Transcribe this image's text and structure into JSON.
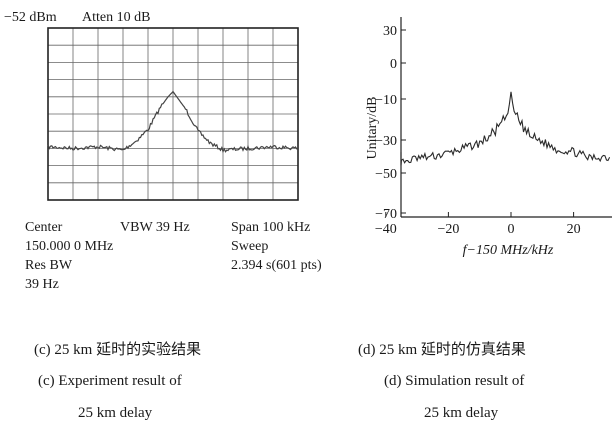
{
  "chart_data": [
    {
      "type": "line",
      "panel": "c",
      "header": {
        "ref_level": "−52 dBm",
        "atten": "Atten 10 dB"
      },
      "footer": {
        "center_label": "Center",
        "center_value": "150.000 0 MHz",
        "vbw": "VBW 39 Hz",
        "res_bw_label": "Res BW",
        "res_bw_value": "39 Hz",
        "span": "Span 100 kHz",
        "sweep_label": "Sweep",
        "sweep_value": "2.394 s(601 pts)"
      },
      "grid": true,
      "grid_divisions": {
        "x": 10,
        "y": 10
      },
      "x": [
        -50,
        -40,
        -30,
        -20,
        -15,
        -10,
        -5,
        -2,
        0,
        2,
        5,
        10,
        15,
        20,
        30,
        40,
        50
      ],
      "y": [
        6.9,
        7.0,
        6.9,
        7.1,
        6.6,
        5.9,
        4.6,
        4.0,
        3.7,
        4.1,
        4.7,
        6.0,
        6.7,
        7.1,
        7.0,
        6.9,
        7.0
      ],
      "caption_zh": "(c) 25 km 延时的实验结果",
      "caption_en_1": "(c) Experiment result of",
      "caption_en_2": "25 km delay"
    },
    {
      "type": "line",
      "panel": "d",
      "ylabel": "Unitary/dB",
      "xlabel": "f−150 MHz/kHz",
      "ylim": [
        -70,
        30
      ],
      "xlim": [
        -50,
        50
      ],
      "yticks": [
        "30",
        "0",
        "−10",
        "−30",
        "−50",
        "−70"
      ],
      "xticks": [
        "−40",
        "−20",
        "0",
        "20",
        "40"
      ],
      "x": [
        -50,
        -45,
        -40,
        -35,
        -30,
        -25,
        -20,
        -15,
        -10,
        -6,
        -3,
        -1,
        0,
        1,
        3,
        6,
        10,
        15,
        20,
        25,
        30,
        35,
        40,
        45,
        50
      ],
      "y": [
        -40,
        -43,
        -39,
        -44,
        -41,
        -40,
        -38,
        -35,
        -32,
        -27,
        -22,
        -17,
        -8,
        -16,
        -22,
        -28,
        -31,
        -36,
        -37,
        -41,
        -40,
        -44,
        -38,
        -43,
        -41
      ],
      "caption_zh": "(d) 25 km 延时的仿真结果",
      "caption_en_1": "(d) Simulation result of",
      "caption_en_2": "25 km delay"
    }
  ]
}
